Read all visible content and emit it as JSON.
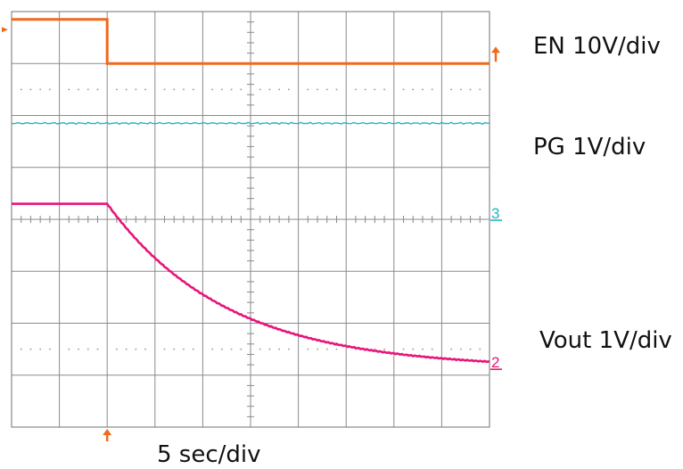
{
  "chart_data": {
    "type": "line",
    "title": "",
    "xlabel": "5 sec/div",
    "ylabel": "",
    "grid": true,
    "divisions": {
      "x": 10,
      "y": 8
    },
    "time_per_div_s": 5,
    "xlim": [
      0,
      50
    ],
    "channel_colors": {
      "en": "#ee6a1c",
      "pg": "#1fb5c4",
      "vout": "#e8147a"
    },
    "series": [
      {
        "name": "EN 10V/div",
        "color": "#ee6a1c",
        "trigger_time_s": 10,
        "points_div": [
          [
            0,
            7.85
          ],
          [
            2,
            7.85
          ],
          [
            2,
            7.0
          ],
          [
            10,
            7.0
          ]
        ]
      },
      {
        "name": "PG 1V/div",
        "color": "#1fb5c4",
        "level_div": 5.85
      },
      {
        "name": "Vout 1V/div",
        "color": "#e8147a",
        "initial_div": 4.3,
        "final_div": 1.13,
        "decay_tau_div": 2.5,
        "start_div": 2
      }
    ],
    "markers": {
      "trigger_arrow_x_div": 2,
      "channel_markers": [
        {
          "label": "",
          "color": "#ee6a1c",
          "level_div": 7.0
        },
        {
          "label": "3",
          "color": "#1fb5c4",
          "level_div": 4.0
        },
        {
          "label": "2",
          "color": "#e8147a",
          "level_div": 1.13
        }
      ]
    }
  }
}
